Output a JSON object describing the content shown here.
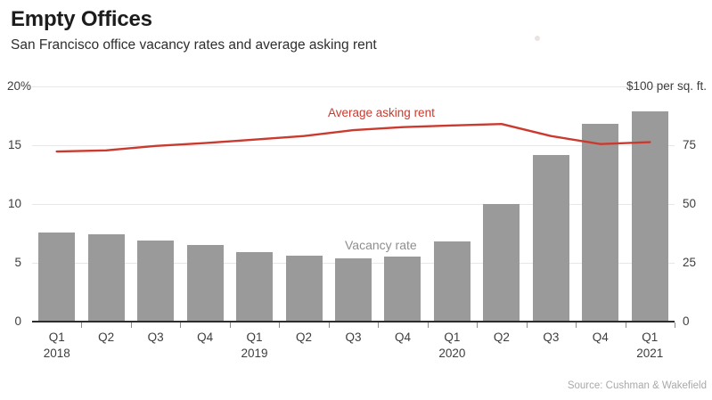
{
  "header": {
    "title": "Empty Offices",
    "subtitle": "San Francisco office vacancy rates and average asking rent"
  },
  "chart_data": {
    "type": "bar",
    "title": "Empty Offices",
    "subtitle": "San Francisco office vacancy rates and average asking rent",
    "categories": [
      {
        "quarter": "Q1",
        "year": "2018"
      },
      {
        "quarter": "Q2",
        "year": ""
      },
      {
        "quarter": "Q3",
        "year": ""
      },
      {
        "quarter": "Q4",
        "year": ""
      },
      {
        "quarter": "Q1",
        "year": "2019"
      },
      {
        "quarter": "Q2",
        "year": ""
      },
      {
        "quarter": "Q3",
        "year": ""
      },
      {
        "quarter": "Q4",
        "year": ""
      },
      {
        "quarter": "Q1",
        "year": "2020"
      },
      {
        "quarter": "Q2",
        "year": ""
      },
      {
        "quarter": "Q3",
        "year": ""
      },
      {
        "quarter": "Q4",
        "year": ""
      },
      {
        "quarter": "Q1",
        "year": "2021"
      }
    ],
    "series": [
      {
        "name": "Vacancy rate",
        "type": "bar",
        "axis": "left",
        "unit": "%",
        "values": [
          7.6,
          7.4,
          6.9,
          6.5,
          5.9,
          5.6,
          5.4,
          5.5,
          6.8,
          10.0,
          14.2,
          16.8,
          17.9
        ]
      },
      {
        "name": "Average asking rent",
        "type": "line",
        "axis": "right",
        "unit": "$ per sq. ft.",
        "values": [
          72.3,
          72.8,
          74.7,
          75.9,
          77.4,
          78.9,
          81.4,
          82.7,
          83.4,
          84.0,
          78.9,
          75.5,
          76.3
        ]
      }
    ],
    "left_axis": {
      "tick_labels": [
        "20%",
        "15",
        "10",
        "5",
        "0"
      ],
      "min": 0,
      "max": 20
    },
    "right_axis": {
      "tick_labels": [
        "$100 per sq. ft.",
        "75",
        "50",
        "25",
        "0"
      ],
      "min": 0,
      "max": 100
    },
    "grid": "horizontal-on",
    "legend_position": "inline-annotations"
  },
  "footer": {
    "source": "Source: Cushman & Wakefield"
  },
  "colors": {
    "bar": "#9a9a9a",
    "line": "#cb3a2e",
    "rent_label_text": "#cb3a2e",
    "vacancy_label_text": "#8e8e8e",
    "axis_text": "#3d3d3d",
    "gridline": "#e7e7e7",
    "axis_line": "#2d2d2d",
    "tick_mark": "#8a8a8a",
    "source_text": "#a9a9a9"
  }
}
